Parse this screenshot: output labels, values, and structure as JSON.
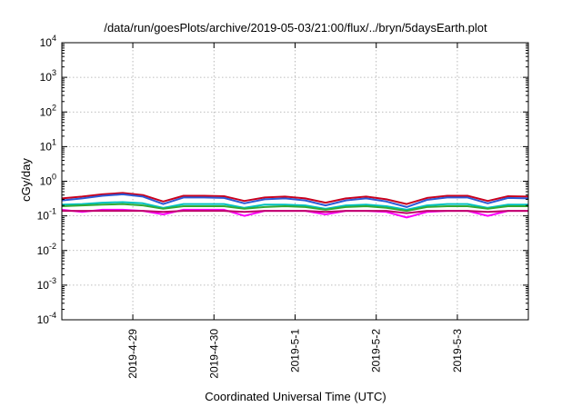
{
  "chart_data": {
    "type": "line",
    "title": "/data/run/goesPlots/archive/2019-05-03/21:00/flux/../bryn/5daysEarth.plot",
    "xlabel": "Coordinated Universal Time (UTC)",
    "ylabel": "cGy/day",
    "yscale": "log",
    "ylim": [
      0.0001,
      10000
    ],
    "xlim": [
      "2019-04-28T03:00",
      "2019-05-03T21:00"
    ],
    "grid": true,
    "y_ticks": [
      {
        "base": "10",
        "exp": "-4"
      },
      {
        "base": "10",
        "exp": "-3"
      },
      {
        "base": "10",
        "exp": "-2"
      },
      {
        "base": "10",
        "exp": "-1"
      },
      {
        "base": "10",
        "exp": "0"
      },
      {
        "base": "10",
        "exp": "1"
      },
      {
        "base": "10",
        "exp": "2"
      },
      {
        "base": "10",
        "exp": "3"
      },
      {
        "base": "10",
        "exp": "4"
      }
    ],
    "x_ticks": [
      {
        "label": "2019-4-29",
        "date": "2019-04-29T00:00"
      },
      {
        "label": "2019-4-30",
        "date": "2019-04-30T00:00"
      },
      {
        "label": "2019-5-1",
        "date": "2019-05-01T00:00"
      },
      {
        "label": "2019-5-2",
        "date": "2019-05-02T00:00"
      },
      {
        "label": "2019-5-3",
        "date": "2019-05-03T00:00"
      }
    ],
    "x": [
      "2019-04-28T03:00",
      "2019-04-28T09:00",
      "2019-04-28T15:00",
      "2019-04-28T21:00",
      "2019-04-29T03:00",
      "2019-04-29T09:00",
      "2019-04-29T15:00",
      "2019-04-29T21:00",
      "2019-04-30T03:00",
      "2019-04-30T09:00",
      "2019-04-30T15:00",
      "2019-04-30T21:00",
      "2019-05-01T03:00",
      "2019-05-01T09:00",
      "2019-05-01T15:00",
      "2019-05-01T21:00",
      "2019-05-02T03:00",
      "2019-05-02T09:00",
      "2019-05-02T15:00",
      "2019-05-02T21:00",
      "2019-05-03T03:00",
      "2019-05-03T09:00",
      "2019-05-03T15:00",
      "2019-05-03T21:00"
    ],
    "series": [
      {
        "color": "#c8001e",
        "values": [
          0.32,
          0.36,
          0.42,
          0.46,
          0.4,
          0.26,
          0.38,
          0.38,
          0.37,
          0.27,
          0.34,
          0.36,
          0.32,
          0.24,
          0.32,
          0.36,
          0.3,
          0.22,
          0.33,
          0.38,
          0.38,
          0.27,
          0.37,
          0.36
        ]
      },
      {
        "color": "#2c5ad6",
        "values": [
          0.28,
          0.32,
          0.38,
          0.42,
          0.36,
          0.22,
          0.34,
          0.34,
          0.33,
          0.23,
          0.3,
          0.32,
          0.28,
          0.2,
          0.28,
          0.32,
          0.26,
          0.18,
          0.29,
          0.34,
          0.34,
          0.23,
          0.33,
          0.32
        ]
      },
      {
        "color": "#00c0c0",
        "values": [
          0.21,
          0.22,
          0.24,
          0.25,
          0.23,
          0.17,
          0.22,
          0.22,
          0.22,
          0.17,
          0.21,
          0.21,
          0.2,
          0.16,
          0.2,
          0.21,
          0.19,
          0.15,
          0.2,
          0.22,
          0.22,
          0.17,
          0.21,
          0.21
        ]
      },
      {
        "color": "#33aa33",
        "values": [
          0.19,
          0.2,
          0.21,
          0.22,
          0.2,
          0.16,
          0.19,
          0.19,
          0.19,
          0.16,
          0.18,
          0.19,
          0.18,
          0.15,
          0.18,
          0.19,
          0.17,
          0.14,
          0.18,
          0.19,
          0.19,
          0.16,
          0.19,
          0.19
        ]
      },
      {
        "color": "#ff00ff",
        "values": [
          0.15,
          0.13,
          0.15,
          0.15,
          0.14,
          0.11,
          0.15,
          0.15,
          0.15,
          0.1,
          0.14,
          0.14,
          0.14,
          0.11,
          0.14,
          0.14,
          0.13,
          0.09,
          0.13,
          0.14,
          0.14,
          0.1,
          0.14,
          0.14
        ]
      },
      {
        "color": "#c0006a",
        "values": [
          0.14,
          0.14,
          0.14,
          0.14,
          0.14,
          0.13,
          0.14,
          0.14,
          0.14,
          0.13,
          0.14,
          0.14,
          0.14,
          0.13,
          0.14,
          0.14,
          0.14,
          0.12,
          0.14,
          0.14,
          0.14,
          0.13,
          0.14,
          0.14
        ]
      }
    ]
  }
}
